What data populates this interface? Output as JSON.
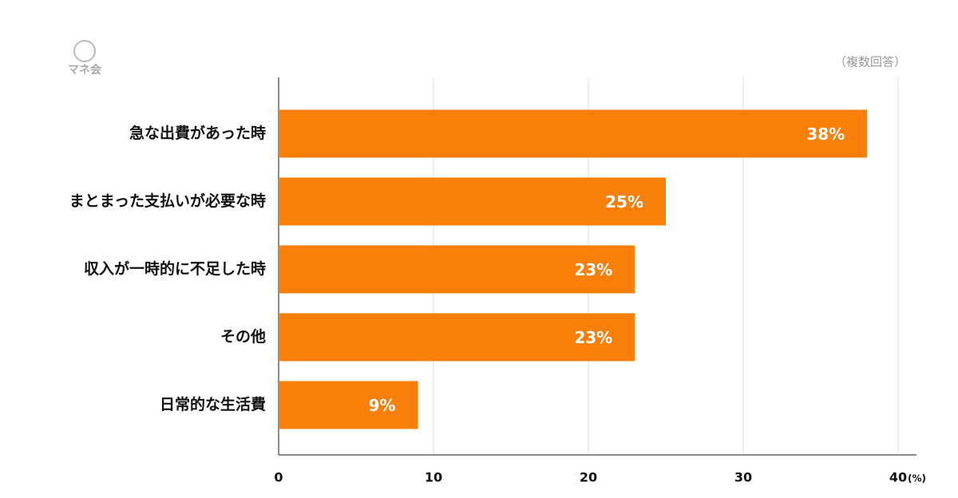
{
  "logo": "マネ会",
  "chart_data": {
    "type": "hbar",
    "note": "（複数回答）",
    "categories": [
      "急な出費があった時",
      "まとまった支払いが必要な時",
      "収入が一時的に不足した時",
      "その他",
      "日常的な生活費"
    ],
    "values": [
      38,
      25,
      23,
      23,
      9
    ],
    "value_labels": [
      "38%",
      "25%",
      "23%",
      "23%",
      "9%"
    ],
    "color": "#f77f0a",
    "xlim": [
      0,
      40
    ],
    "xticks": [
      0,
      10,
      20,
      30,
      40
    ],
    "xlabel": "(%)",
    "grid": true
  }
}
